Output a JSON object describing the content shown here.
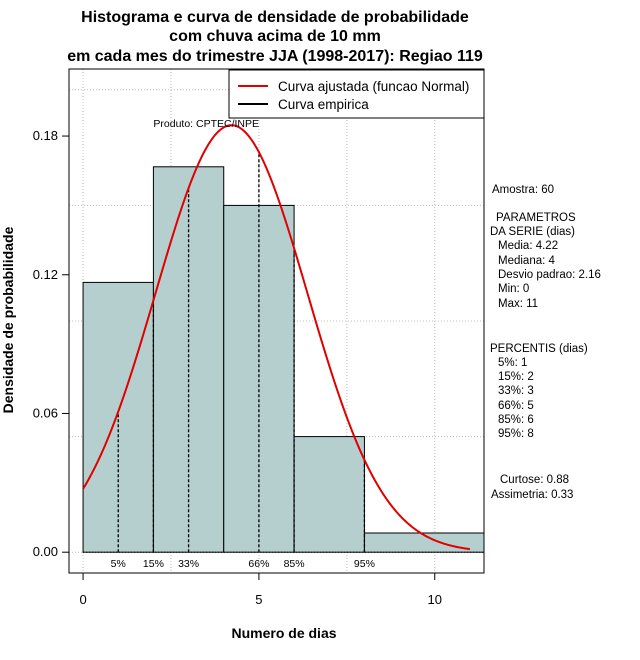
{
  "colors": {
    "bar_fill": "#b5cfcf",
    "bar_stroke": "#000000",
    "fitted_curve": "#e00000",
    "grid": "#bbbbbb"
  },
  "chart_data": {
    "type": "bar",
    "title": [
      "Histograma e curva de densidade de probabilidade",
      "com chuva acima de 10 mm",
      "em cada mes do trimestre JJA (1998-2017): Regiao 119"
    ],
    "xlabel": "Numero de dias",
    "ylabel": "Densidade de probabilidade",
    "xlim": [
      -0.4,
      11.4
    ],
    "ylim": [
      -0.009,
      0.209
    ],
    "xticks": [
      0,
      5,
      10
    ],
    "yticks": [
      0.0,
      0.06,
      0.12,
      0.18
    ],
    "ytick_labels": [
      "0.00",
      "0.06",
      "0.12",
      "0.18"
    ],
    "grid": true,
    "bins": [
      {
        "start": 0,
        "end": 2,
        "density": 0.1167
      },
      {
        "start": 2,
        "end": 4,
        "density": 0.1667
      },
      {
        "start": 4,
        "end": 6,
        "density": 0.15
      },
      {
        "start": 6,
        "end": 8,
        "density": 0.05
      },
      {
        "start": 8,
        "end": 11.4,
        "density": 0.0083
      }
    ],
    "normal_fit": {
      "mean": 4.22,
      "sd": 2.16,
      "x_from": 0,
      "x_to": 11
    },
    "percentile_markers": [
      {
        "label": "5%",
        "x": 1
      },
      {
        "label": "15%",
        "x": 2
      },
      {
        "label": "33%",
        "x": 3
      },
      {
        "label": "66%",
        "x": 5
      },
      {
        "label": "85%",
        "x": 6
      },
      {
        "label": "95%",
        "x": 8
      }
    ],
    "legend": {
      "position": "top-right",
      "entries": [
        "Curva ajustada (funcao Normal)",
        "Curva empirica"
      ]
    },
    "product_label": "Produto: CPTEC/INPE"
  },
  "stats": {
    "amostra": "Amostra: 60",
    "params_lines": [
      "PARAMETROS",
      "DA SERIE (dias)",
      "Media: 4.22",
      "Mediana: 4",
      "Desvio padrao: 2.16",
      "Min: 0",
      "Max: 11"
    ],
    "percentis_lines": [
      "PERCENTIS (dias)",
      "5%: 1",
      "15%: 2",
      "33%: 3",
      "66%: 5",
      "85%: 6",
      "95%: 8"
    ],
    "curtose": "Curtose: 0.88",
    "assimetria": "Assimetria: 0.33"
  }
}
